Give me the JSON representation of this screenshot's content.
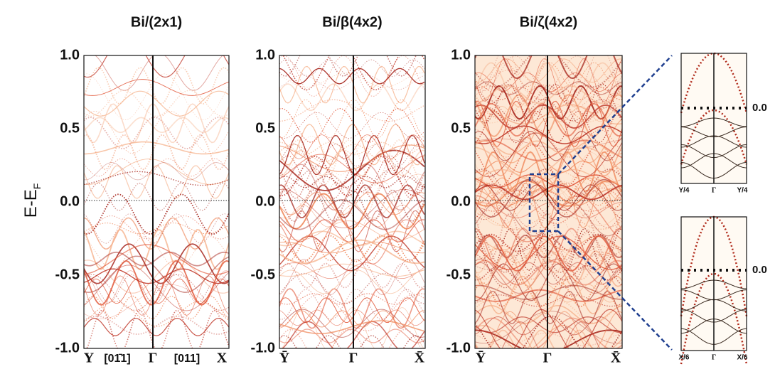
{
  "ylabel": {
    "main": "E-E",
    "sub": "F"
  },
  "panels": [
    {
      "title": "Bi/(2x1)",
      "yticks": [
        "1.0",
        "0.5",
        "0.0",
        "-0.5",
        "-1.0"
      ],
      "xlabels": [
        "Y",
        "[01̄1]",
        "Γ",
        "[011]",
        "X"
      ]
    },
    {
      "title": "Bi/β(4x2)",
      "yticks": [
        "1.0",
        "0.5",
        "0.0",
        "-0.5",
        "-1.0"
      ],
      "xlabels": [
        "Ȳ",
        "Γ",
        "X̄"
      ]
    },
    {
      "title": "Bi/ζ(4x2)",
      "yticks": [
        "1.0",
        "0.5",
        "0.0",
        "-0.5",
        "-1.0"
      ],
      "xlabels": [
        "Ȳ",
        "Γ",
        "X̄"
      ]
    }
  ],
  "insets": [
    {
      "level": "0.0",
      "xlabels": [
        "Y/4",
        "Γ",
        "Y/4"
      ]
    },
    {
      "level": "0.0",
      "xlabels": [
        "X/6",
        "Γ",
        "X/6"
      ]
    }
  ]
}
